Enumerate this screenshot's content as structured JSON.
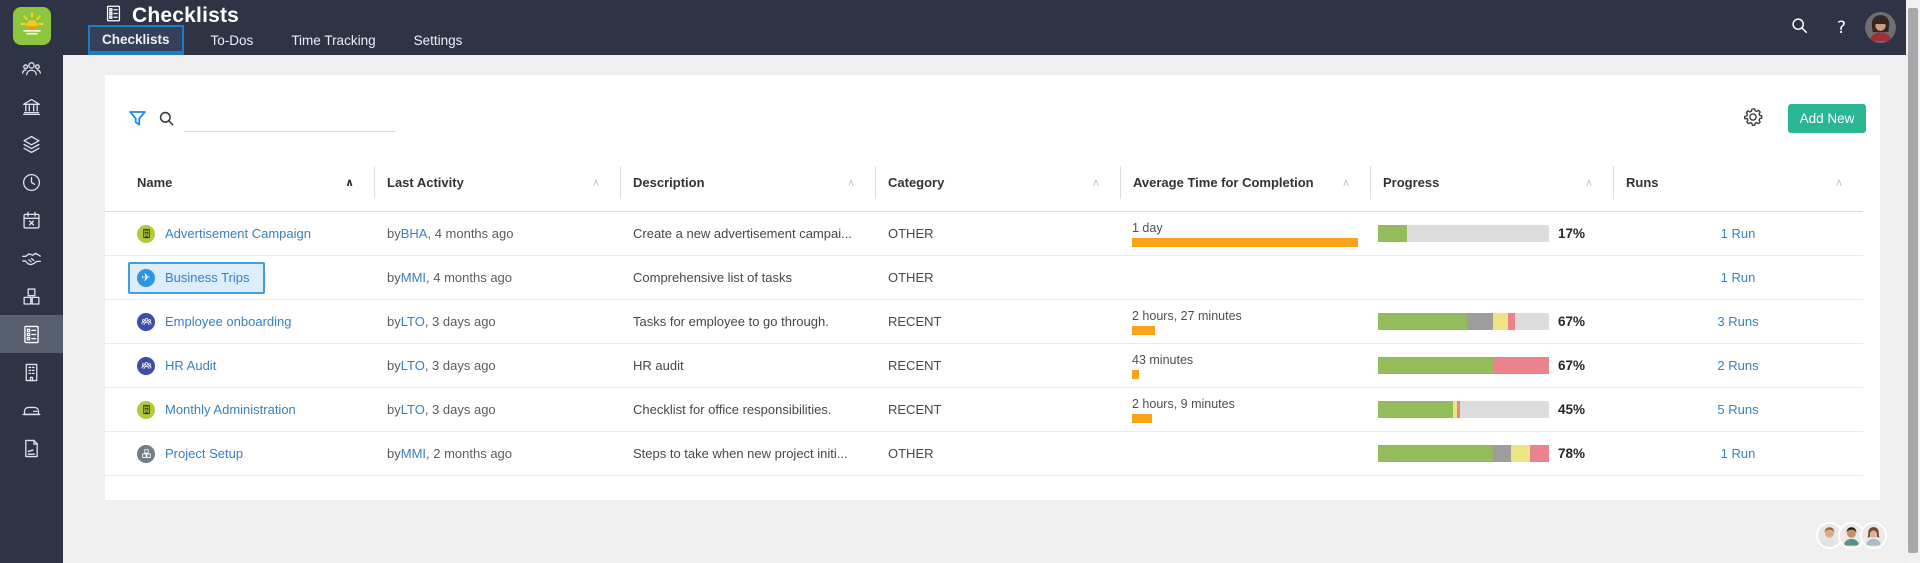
{
  "topbar": {
    "title": "Checklists",
    "tabs": [
      {
        "label": "Checklists",
        "active": true
      },
      {
        "label": "To-Dos",
        "active": false
      },
      {
        "label": "Time Tracking",
        "active": false
      },
      {
        "label": "Settings",
        "active": false
      }
    ],
    "help_label": "?",
    "icons": [
      "search-icon",
      "help-icon",
      "user-avatar"
    ]
  },
  "sidebar": {
    "items": [
      {
        "icon": "people",
        "active": false
      },
      {
        "icon": "bank",
        "active": false
      },
      {
        "icon": "layers",
        "active": false
      },
      {
        "icon": "clock",
        "active": false
      },
      {
        "icon": "calendar",
        "active": false
      },
      {
        "icon": "handshake",
        "active": false
      },
      {
        "icon": "cubes",
        "active": false
      },
      {
        "icon": "checklist",
        "active": true
      },
      {
        "icon": "building",
        "active": false
      },
      {
        "icon": "vehicle",
        "active": false
      },
      {
        "icon": "report",
        "active": false
      }
    ]
  },
  "toolbar": {
    "search_value": "",
    "add_new_label": "Add New",
    "icons": [
      "filter-icon",
      "search-icon",
      "gear-icon"
    ]
  },
  "table": {
    "columns": [
      {
        "label": "Name",
        "sort": "asc-active"
      },
      {
        "label": "Last Activity",
        "sort": "none"
      },
      {
        "label": "Description",
        "sort": "none"
      },
      {
        "label": "Category",
        "sort": "none"
      },
      {
        "label": "Average Time for Completion",
        "sort": "none"
      },
      {
        "label": "Progress",
        "sort": "none"
      },
      {
        "label": "Runs",
        "sort": "none"
      }
    ],
    "rows": [
      {
        "name": "Advertisement Campaign",
        "icon": "building",
        "icon_bg": "#b6ca39",
        "icon_fg": "#1f1f1f",
        "activity_by": "by ",
        "activity_user": "BHA",
        "activity_when": ", 4 months ago",
        "description": "Create a new advertisement campai...",
        "category": "OTHER",
        "avg_time": "1 day",
        "avg_bar_pct": 100,
        "progress_segments": [
          [
            "green",
            17
          ],
          [
            "gray_light",
            83
          ]
        ],
        "progress_label": "17%",
        "runs": "1 Run",
        "selected": false
      },
      {
        "name": "Business Trips",
        "icon": "plane",
        "icon_bg": "#2d96e0",
        "icon_fg": "#ffffff",
        "activity_by": "by ",
        "activity_user": "MMI",
        "activity_when": ", 4 months ago",
        "description": "Comprehensive list of tasks",
        "category": "OTHER",
        "avg_time": "",
        "avg_bar_pct": 0,
        "progress_segments": [],
        "progress_label": "",
        "runs": "1 Run",
        "selected": true
      },
      {
        "name": "Employee onboarding",
        "icon": "people",
        "icon_bg": "#3d4ea8",
        "icon_fg": "#ffffff",
        "activity_by": "by ",
        "activity_user": "LTO",
        "activity_when": ", 3 days ago",
        "description": "Tasks for employee to go through.",
        "category": "RECENT",
        "avg_time": "2 hours, 27 minutes",
        "avg_bar_pct": 10,
        "progress_segments": [
          [
            "green",
            52
          ],
          [
            "gray_dark",
            15
          ],
          [
            "yellow",
            9
          ],
          [
            "red",
            4
          ],
          [
            "gray_light",
            20
          ]
        ],
        "progress_label": "67%",
        "runs": "3 Runs",
        "selected": false
      },
      {
        "name": "HR Audit",
        "icon": "people",
        "icon_bg": "#3d4ea8",
        "icon_fg": "#ffffff",
        "activity_by": "by ",
        "activity_user": "LTO",
        "activity_when": ", 3 days ago",
        "description": "HR audit",
        "category": "RECENT",
        "avg_time": "43 minutes",
        "avg_bar_pct": 3,
        "progress_segments": [
          [
            "green",
            67
          ],
          [
            "red",
            33
          ]
        ],
        "progress_label": "67%",
        "runs": "2 Runs",
        "selected": false
      },
      {
        "name": "Monthly Administration",
        "icon": "building",
        "icon_bg": "#b6ca39",
        "icon_fg": "#1f1f1f",
        "activity_by": "by ",
        "activity_user": "LTO",
        "activity_when": ", 3 days ago",
        "description": "Checklist for office responsibilities.",
        "category": "RECENT",
        "avg_time": "2 hours, 9 minutes",
        "avg_bar_pct": 9,
        "progress_segments": [
          [
            "green",
            44
          ],
          [
            "yellow",
            2
          ],
          [
            "red",
            2
          ],
          [
            "gray_light",
            52
          ]
        ],
        "progress_label": "45%",
        "runs": "5 Runs",
        "selected": false
      },
      {
        "name": "Project Setup",
        "icon": "cubes",
        "icon_bg": "#6f7f8a",
        "icon_fg": "#ffffff",
        "activity_by": "by ",
        "activity_user": "MMI",
        "activity_when": ", 2 months ago",
        "description": "Steps to take when new project initi...",
        "category": "OTHER",
        "avg_time": "",
        "avg_bar_pct": 0,
        "progress_segments": [
          [
            "green",
            67
          ],
          [
            "gray_dark",
            11
          ],
          [
            "yellow",
            11
          ],
          [
            "red",
            11
          ]
        ],
        "progress_label": "78%",
        "runs": "1 Run",
        "selected": false
      }
    ]
  },
  "colors": {
    "topbar_bg": "#2e3346",
    "accent_blue": "#1f7cc4",
    "link_blue": "#397fc0",
    "add_new_green": "#2ab593",
    "avg_bar_orange": "#f9a21b",
    "selection_border": "#419ede",
    "selection_bg": "#dcedfb",
    "progress": {
      "green": "#93bd5d",
      "gray_dark": "#9d9d9d",
      "yellow": "#ede584",
      "red": "#ea838b",
      "gray_light": "#dcdcdc"
    }
  }
}
